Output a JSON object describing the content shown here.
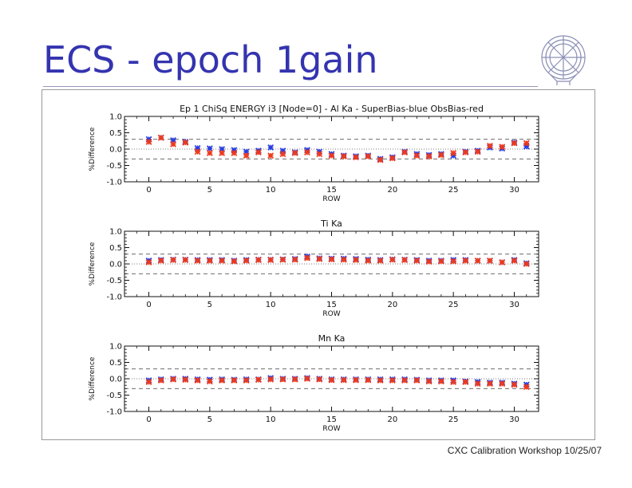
{
  "slide": {
    "title": "ECS - epoch 1gain",
    "footer": "CXC Calibration Workshop 10/25/07"
  },
  "logo": {
    "icon": "chandra-observatory-logo-icon"
  },
  "colors": {
    "blue": "#2a3fe0",
    "red": "#ee3a1c",
    "title": "#3434b0"
  },
  "chart_data": [
    {
      "type": "scatter",
      "title": "Ep 1 ChiSq ENERGY i3 [Node=0] - Al Ka - SuperBias-blue ObsBias-red",
      "xlabel": "ROW",
      "ylabel": "%Difference",
      "xlim": [
        -2,
        32
      ],
      "ylim": [
        -1.0,
        1.0
      ],
      "xticks": [
        0,
        5,
        10,
        15,
        20,
        25,
        30
      ],
      "yticks": [
        "-1.0",
        "-0.5",
        "0.0",
        "0.5",
        "1.0"
      ],
      "dashed_lines": [
        0.3,
        -0.3
      ],
      "dotted_lines": [
        0.0
      ],
      "x": [
        0,
        1,
        2,
        3,
        4,
        5,
        6,
        7,
        8,
        9,
        10,
        11,
        12,
        13,
        14,
        15,
        16,
        17,
        18,
        19,
        20,
        21,
        22,
        23,
        24,
        25,
        26,
        27,
        28,
        29,
        30,
        31
      ],
      "series": [
        {
          "name": "SuperBias",
          "color": "blue",
          "values": [
            0.3,
            0.35,
            0.27,
            0.22,
            0.03,
            0.02,
            0.0,
            -0.03,
            -0.08,
            -0.05,
            0.05,
            -0.05,
            -0.1,
            -0.03,
            -0.08,
            -0.15,
            -0.2,
            -0.22,
            -0.2,
            -0.3,
            -0.25,
            -0.08,
            -0.15,
            -0.18,
            -0.15,
            -0.2,
            -0.08,
            -0.05,
            0.05,
            0.02,
            0.2,
            0.08
          ]
        },
        {
          "name": "ObsBias",
          "color": "red",
          "values": [
            0.22,
            0.35,
            0.15,
            0.2,
            -0.08,
            -0.12,
            -0.12,
            -0.12,
            -0.2,
            -0.1,
            -0.2,
            -0.15,
            -0.12,
            -0.1,
            -0.15,
            -0.2,
            -0.22,
            -0.25,
            -0.22,
            -0.33,
            -0.28,
            -0.1,
            -0.2,
            -0.22,
            -0.18,
            -0.12,
            -0.1,
            -0.08,
            0.1,
            0.07,
            0.18,
            0.18
          ]
        }
      ]
    },
    {
      "type": "scatter",
      "title": "Ti Ka",
      "xlabel": "ROW",
      "ylabel": "%Difference",
      "xlim": [
        -2,
        32
      ],
      "ylim": [
        -1.0,
        1.0
      ],
      "xticks": [
        0,
        5,
        10,
        15,
        20,
        25,
        30
      ],
      "yticks": [
        "-1.0",
        "-0.5",
        "0.0",
        "0.5",
        "1.0"
      ],
      "dashed_lines": [
        0.3,
        -0.3
      ],
      "dotted_lines": [
        0.0
      ],
      "x": [
        0,
        1,
        2,
        3,
        4,
        5,
        6,
        7,
        8,
        9,
        10,
        11,
        12,
        13,
        14,
        15,
        16,
        17,
        18,
        19,
        20,
        21,
        22,
        23,
        24,
        25,
        26,
        27,
        28,
        29,
        30,
        31
      ],
      "series": [
        {
          "name": "SuperBias",
          "color": "blue",
          "values": [
            0.1,
            0.12,
            0.13,
            0.13,
            0.12,
            0.12,
            0.12,
            0.1,
            0.12,
            0.13,
            0.13,
            0.14,
            0.15,
            0.22,
            0.17,
            0.16,
            0.16,
            0.15,
            0.13,
            0.12,
            0.14,
            0.13,
            0.12,
            0.1,
            0.1,
            0.12,
            0.12,
            0.1,
            0.1,
            0.05,
            0.12,
            0.02
          ]
        },
        {
          "name": "ObsBias",
          "color": "red",
          "values": [
            0.05,
            0.1,
            0.12,
            0.12,
            0.1,
            0.1,
            0.1,
            0.08,
            0.1,
            0.12,
            0.12,
            0.13,
            0.13,
            0.18,
            0.15,
            0.14,
            0.13,
            0.12,
            0.1,
            0.1,
            0.13,
            0.12,
            0.1,
            0.07,
            0.08,
            0.08,
            0.1,
            0.1,
            0.1,
            0.05,
            0.1,
            0.0
          ]
        }
      ]
    },
    {
      "type": "scatter",
      "title": "Mn Ka",
      "xlabel": "ROW",
      "ylabel": "%Difference",
      "xlim": [
        -2,
        32
      ],
      "ylim": [
        -1.0,
        1.0
      ],
      "xticks": [
        0,
        5,
        10,
        15,
        20,
        25,
        30
      ],
      "yticks": [
        "-1.0",
        "-0.5",
        "0.0",
        "0.5",
        "1.0"
      ],
      "dashed_lines": [
        0.3,
        -0.3
      ],
      "dotted_lines": [
        0.0
      ],
      "x": [
        0,
        1,
        2,
        3,
        4,
        5,
        6,
        7,
        8,
        9,
        10,
        11,
        12,
        13,
        14,
        15,
        16,
        17,
        18,
        19,
        20,
        21,
        22,
        23,
        24,
        25,
        26,
        27,
        28,
        29,
        30,
        31
      ],
      "series": [
        {
          "name": "SuperBias",
          "color": "blue",
          "values": [
            -0.05,
            -0.02,
            0.0,
            0.0,
            -0.02,
            -0.03,
            -0.02,
            -0.03,
            -0.02,
            -0.02,
            0.02,
            0.0,
            0.0,
            0.02,
            0.0,
            -0.02,
            -0.02,
            -0.02,
            -0.02,
            -0.02,
            -0.02,
            -0.02,
            -0.03,
            -0.05,
            -0.05,
            -0.05,
            -0.08,
            -0.1,
            -0.12,
            -0.12,
            -0.15,
            -0.18
          ]
        },
        {
          "name": "ObsBias",
          "color": "red",
          "values": [
            -0.1,
            -0.05,
            -0.02,
            -0.03,
            -0.05,
            -0.08,
            -0.05,
            -0.05,
            -0.05,
            -0.03,
            -0.02,
            -0.02,
            -0.02,
            0.0,
            -0.02,
            -0.04,
            -0.04,
            -0.04,
            -0.04,
            -0.05,
            -0.05,
            -0.05,
            -0.05,
            -0.08,
            -0.08,
            -0.1,
            -0.1,
            -0.15,
            -0.15,
            -0.15,
            -0.18,
            -0.25
          ]
        }
      ]
    }
  ]
}
